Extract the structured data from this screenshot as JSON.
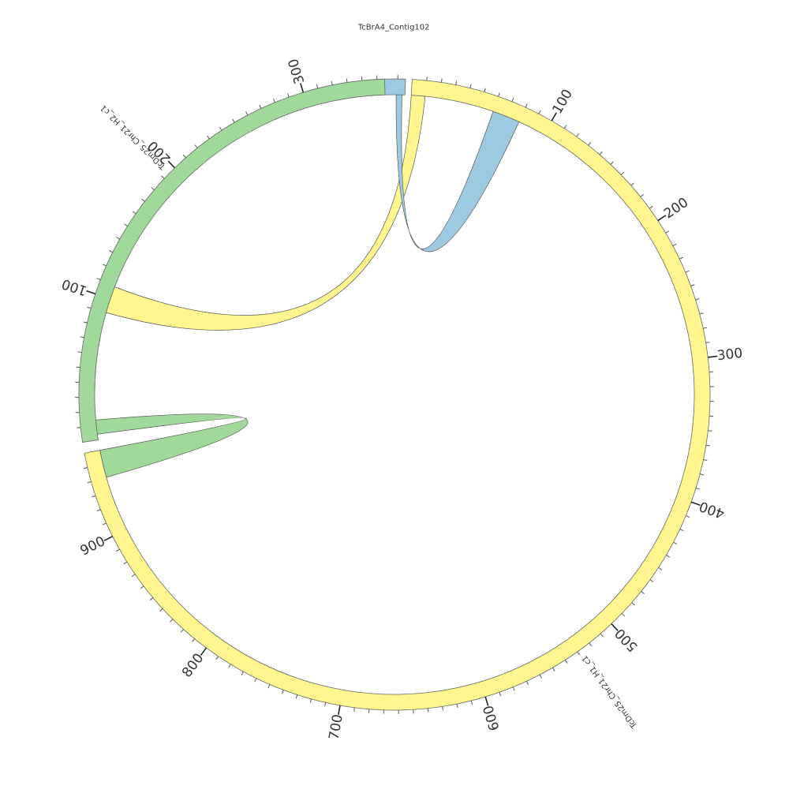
{
  "segments": [
    {
      "id": "contig",
      "name": "TcBrA4_Contig102",
      "color": "#9ecae1",
      "length": 15,
      "major_every": 100,
      "minor_every": 10
    },
    {
      "id": "h1",
      "name": "TcDm25_Chr21_H1_c1",
      "color": "#fff68f",
      "length": 960,
      "major_every": 100,
      "minor_every": 10
    },
    {
      "id": "h2",
      "name": "TcDm25_Chr21_H2_c1",
      "color": "#a1d99b",
      "length": 355,
      "major_every": 100,
      "minor_every": 10
    }
  ],
  "tick_labels": {
    "h1": [
      "100",
      "200",
      "300",
      "400",
      "500",
      "600",
      "700",
      "800",
      "900"
    ],
    "h2": [
      "100",
      "200",
      "300"
    ]
  },
  "links": [
    {
      "from": "h2",
      "from_range": [
        4,
        14
      ],
      "to": "h1",
      "to_range": [
        940,
        960
      ],
      "color": "#a1d99b"
    },
    {
      "from": "h1",
      "from_range": [
        0,
        10
      ],
      "to": "h2",
      "to_range": [
        90,
        109
      ],
      "color": "#fff68f"
    },
    {
      "from": "contig",
      "from_range": [
        9,
        13
      ],
      "to": "h1",
      "to_range": [
        60,
        80
      ],
      "color": "#9ecae1"
    }
  ]
}
